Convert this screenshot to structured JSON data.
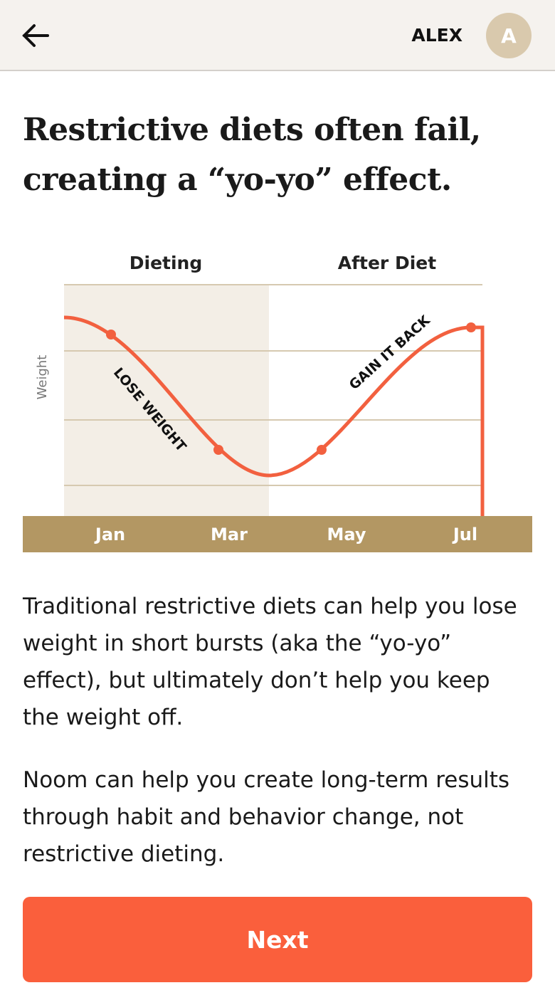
{
  "header": {
    "user_name": "ALEX",
    "avatar_initial": "A"
  },
  "title": [
    "Restrictive diets often fail,",
    "creating a “yo-yo” effect."
  ],
  "illustration": {
    "phase_labels": [
      "Dieting",
      "After Diet"
    ],
    "y_axis_label": "Weight",
    "annotations": [
      "LOSE WEIGHT",
      "GAIN IT BACK"
    ],
    "months": [
      "Jan",
      "Mar",
      "May",
      "Jul"
    ]
  },
  "paragraphs": [
    "Traditional restrictive diets can help you lose weight in short bursts (aka the “yo-yo” effect), but ultimately don’t help you keep the weight off.",
    "Noom can help you create long-term results through habit and behavior change, not restrictive dieting."
  ],
  "button": "Next"
}
